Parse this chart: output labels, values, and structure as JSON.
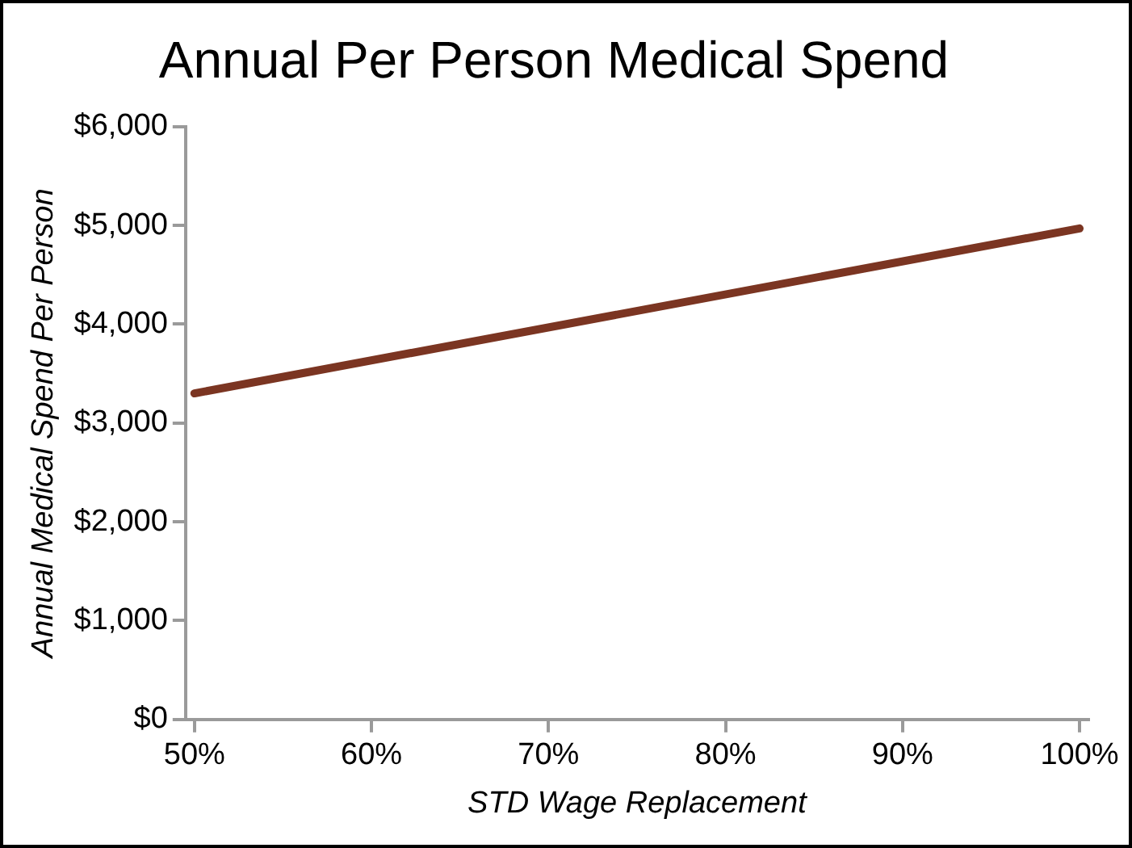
{
  "chart_data": {
    "type": "line",
    "title": "Annual Per Person Medical Spend",
    "xlabel": "STD Wage Replacement",
    "ylabel": "Annual Medical Spend Per Person",
    "x": [
      50,
      100
    ],
    "series": [
      {
        "color": "#7b3522",
        "values": [
          3300,
          4970
        ]
      }
    ],
    "xlim": [
      49.5,
      100.5
    ],
    "xticks": [
      {
        "value": 50,
        "label": "50%"
      },
      {
        "value": 60,
        "label": "60%"
      },
      {
        "value": 70,
        "label": "70%"
      },
      {
        "value": 80,
        "label": "80%"
      },
      {
        "value": 90,
        "label": "90%"
      },
      {
        "value": 100,
        "label": "100%"
      }
    ],
    "ylim": [
      0,
      6000
    ],
    "yticks": [
      {
        "value": 0,
        "label": "$0"
      },
      {
        "value": 1000,
        "label": "$1,000"
      },
      {
        "value": 2000,
        "label": "$2,000"
      },
      {
        "value": 3000,
        "label": "$3,000"
      },
      {
        "value": 4000,
        "label": "$4,000"
      },
      {
        "value": 5000,
        "label": "$5,000"
      },
      {
        "value": 6000,
        "label": "$6,000"
      }
    ],
    "grid": false,
    "legend": false,
    "marker": "none",
    "line_style": "solid"
  }
}
